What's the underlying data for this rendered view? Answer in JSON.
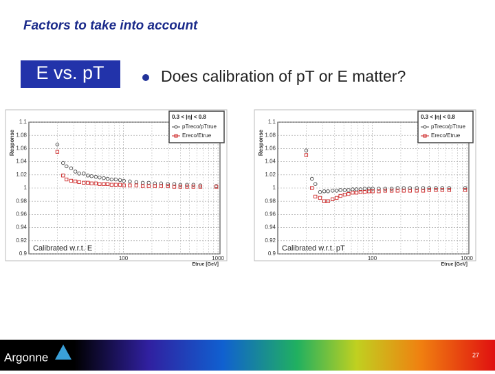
{
  "slide": {
    "title": "Factors to take into account",
    "header_box": "E vs. pT",
    "bullet": "Does calibration of pT or E matter?",
    "page_number": "27",
    "logo": "Argonne"
  },
  "chart_data": [
    {
      "type": "scatter",
      "y_label": "Response",
      "x_label": "Etrue [GeV]",
      "annotation": "Calibrated w.r.t. E",
      "legend_title": "0.3 < |η| < 0.8",
      "log_x": true,
      "grid": true,
      "legend": "top-right",
      "xlim": [
        10,
        1050
      ],
      "xticks": [
        100,
        1000
      ],
      "x_minor_ticks": [
        20,
        30,
        40,
        50,
        60,
        70,
        80,
        90,
        200,
        300,
        400,
        500,
        600,
        700,
        800,
        900
      ],
      "ylim": [
        0.9,
        1.1
      ],
      "yticks": [
        0.9,
        0.92,
        0.94,
        0.96,
        0.98,
        1,
        1.02,
        1.04,
        1.06,
        1.08,
        1.1
      ],
      "x": [
        20,
        23,
        25,
        28,
        31,
        34,
        38,
        42,
        46,
        51,
        56,
        62,
        68,
        75,
        83,
        92,
        101,
        117,
        137,
        160,
        185,
        215,
        250,
        295,
        345,
        400,
        470,
        550,
        650,
        960
      ],
      "series": [
        {
          "name": "pTreco/pTtrue",
          "color": "#444444",
          "marker": "circle",
          "values": [
            1.066,
            1.038,
            1.033,
            1.03,
            1.025,
            1.022,
            1.022,
            1.019,
            1.018,
            1.017,
            1.016,
            1.015,
            1.014,
            1.013,
            1.013,
            1.012,
            1.011,
            1.01,
            1.009,
            1.008,
            1.008,
            1.007,
            1.007,
            1.006,
            1.006,
            1.005,
            1.005,
            1.005,
            1.004,
            1.003
          ]
        },
        {
          "name": "Ereco/Etrue",
          "color": "#cc2222",
          "marker": "square",
          "values": [
            1.055,
            1.019,
            1.013,
            1.011,
            1.01,
            1.009,
            1.008,
            1.008,
            1.007,
            1.007,
            1.006,
            1.006,
            1.006,
            1.005,
            1.005,
            1.005,
            1.004,
            1.004,
            1.004,
            1.003,
            1.003,
            1.003,
            1.003,
            1.003,
            1.002,
            1.002,
            1.002,
            1.002,
            1.002,
            1.002
          ]
        }
      ]
    },
    {
      "type": "scatter",
      "y_label": "Response",
      "x_label": "Etrue [GeV]",
      "annotation": "Calibrated w.r.t. pT",
      "legend_title": "0.3 < |η| < 0.8",
      "log_x": true,
      "grid": true,
      "legend": "top-right",
      "xlim": [
        10,
        1050
      ],
      "xticks": [
        100,
        1000
      ],
      "x_minor_ticks": [
        20,
        30,
        40,
        50,
        60,
        70,
        80,
        90,
        200,
        300,
        400,
        500,
        600,
        700,
        800,
        900
      ],
      "ylim": [
        0.9,
        1.1
      ],
      "yticks": [
        0.9,
        0.92,
        0.94,
        0.96,
        0.98,
        1,
        1.02,
        1.04,
        1.06,
        1.08,
        1.1
      ],
      "x": [
        20,
        23,
        25,
        28,
        31,
        34,
        38,
        42,
        46,
        51,
        56,
        62,
        68,
        75,
        83,
        92,
        101,
        117,
        137,
        160,
        185,
        215,
        250,
        295,
        345,
        400,
        470,
        550,
        650,
        960
      ],
      "series": [
        {
          "name": "pTreco/pTtrue",
          "color": "#444444",
          "marker": "circle",
          "values": [
            1.057,
            1.014,
            1.006,
            0.994,
            0.995,
            0.995,
            0.996,
            0.996,
            0.997,
            0.997,
            0.997,
            0.998,
            0.998,
            0.998,
            0.999,
            0.999,
            0.999,
            0.999,
            0.999,
            0.999,
            1,
            1,
            1,
            1,
            1,
            1,
            1,
            1,
            1,
            1
          ]
        },
        {
          "name": "Ereco/Etrue",
          "color": "#cc2222",
          "marker": "square",
          "values": [
            1.05,
            1,
            0.987,
            0.985,
            0.98,
            0.98,
            0.983,
            0.985,
            0.988,
            0.99,
            0.991,
            0.993,
            0.993,
            0.994,
            0.994,
            0.995,
            0.995,
            0.995,
            0.996,
            0.996,
            0.996,
            0.996,
            0.996,
            0.996,
            0.996,
            0.997,
            0.997,
            0.997,
            0.997,
            0.997
          ]
        }
      ]
    }
  ]
}
